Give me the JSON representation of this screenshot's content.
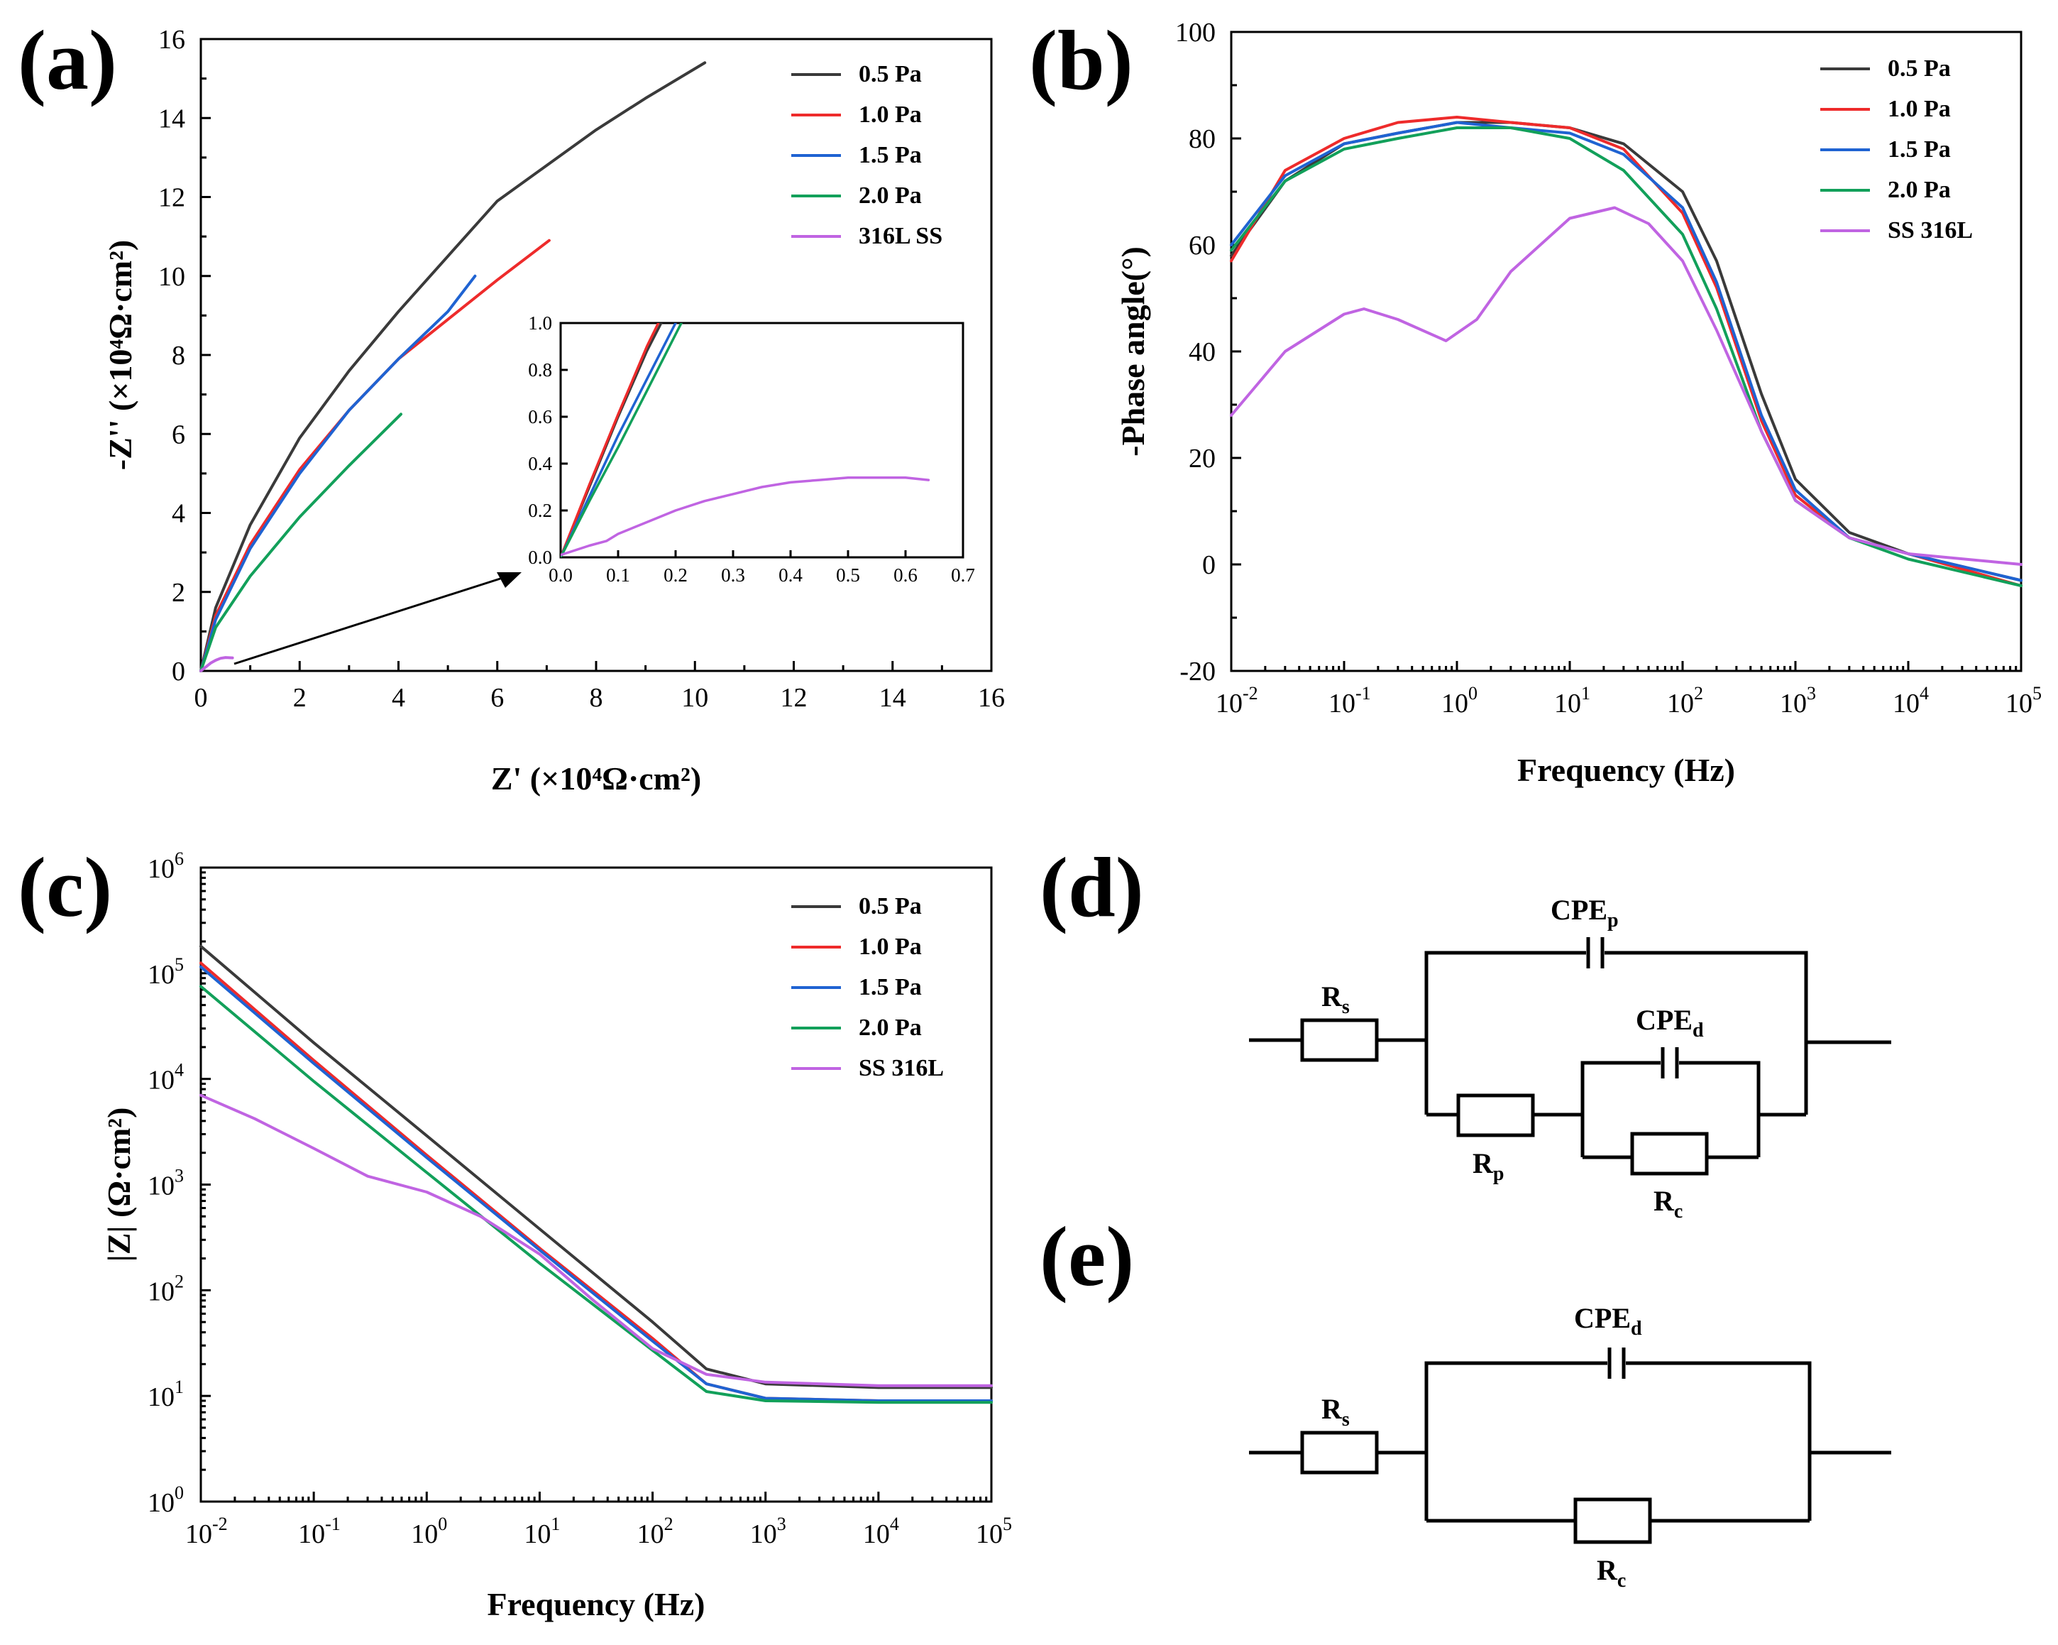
{
  "panels": {
    "a": "(a)",
    "b": "(b)",
    "c": "(c)",
    "d": "(d)",
    "e": "(e)"
  },
  "series_colors": [
    "#3a3a3a",
    "#ee2b2b",
    "#1f63d2",
    "#12a05a",
    "#c064e2"
  ],
  "chart_data": [
    {
      "panel": "a",
      "type": "line",
      "xlabel": "Z' (×10⁴Ω·cm²)",
      "ylabel": "-Z'' (×10⁴Ω·cm²)",
      "xlim": [
        0,
        16
      ],
      "ylim": [
        0,
        16
      ],
      "xticks": [
        "0",
        "2",
        "4",
        "6",
        "8",
        "10",
        "12",
        "14",
        "16"
      ],
      "yticks": [
        "0",
        "2",
        "4",
        "6",
        "8",
        "10",
        "12",
        "14",
        "16"
      ],
      "legend": [
        "0.5 Pa",
        "1.0 Pa",
        "1.5 Pa",
        "2.0 Pa",
        "316L SS"
      ],
      "series": [
        {
          "name": "0.5 Pa",
          "x": [
            0,
            0.3,
            1,
            2,
            3,
            4,
            5,
            6,
            7,
            8,
            9,
            10.2
          ],
          "y": [
            0,
            1.6,
            3.7,
            5.9,
            7.6,
            9.1,
            10.5,
            11.9,
            12.8,
            13.7,
            14.5,
            15.4
          ]
        },
        {
          "name": "1.0 Pa",
          "x": [
            0,
            0.3,
            1,
            2,
            3,
            4,
            5,
            6,
            7.05
          ],
          "y": [
            0,
            1.4,
            3.2,
            5.1,
            6.6,
            7.9,
            8.9,
            9.9,
            10.9
          ]
        },
        {
          "name": "1.5 Pa",
          "x": [
            0,
            0.3,
            1,
            2,
            3,
            4,
            5,
            5.55
          ],
          "y": [
            0,
            1.3,
            3.1,
            5.0,
            6.6,
            7.9,
            9.1,
            10.0
          ]
        },
        {
          "name": "2.0 Pa",
          "x": [
            0,
            0.3,
            1,
            2,
            3,
            4.05
          ],
          "y": [
            0,
            1.1,
            2.4,
            3.9,
            5.2,
            6.5
          ]
        },
        {
          "name": "316L SS",
          "x": [
            0,
            0.1,
            0.2,
            0.3,
            0.4,
            0.5,
            0.64
          ],
          "y": [
            0,
            0.1,
            0.2,
            0.27,
            0.32,
            0.34,
            0.33
          ]
        }
      ],
      "inset": {
        "xlim": [
          0,
          0.7
        ],
        "ylim": [
          0,
          1.0
        ],
        "xticks": [
          "0.0",
          "0.1",
          "0.2",
          "0.3",
          "0.4",
          "0.5",
          "0.6",
          "0.7"
        ],
        "yticks": [
          "0.0",
          "0.2",
          "0.4",
          "0.6",
          "0.8",
          "1.0"
        ],
        "series": [
          {
            "name": "0.5 Pa",
            "x": [
              0,
              0.05,
              0.1,
              0.15,
              0.175
            ],
            "y": [
              0,
              0.3,
              0.6,
              0.88,
              1.0
            ]
          },
          {
            "name": "1.0 Pa",
            "x": [
              0,
              0.05,
              0.1,
              0.15,
              0.17
            ],
            "y": [
              0,
              0.31,
              0.61,
              0.9,
              1.0
            ]
          },
          {
            "name": "1.5 Pa",
            "x": [
              0,
              0.05,
              0.1,
              0.15,
              0.2
            ],
            "y": [
              0,
              0.26,
              0.52,
              0.76,
              1.0
            ]
          },
          {
            "name": "2.0 Pa",
            "x": [
              0,
              0.05,
              0.1,
              0.15,
              0.21
            ],
            "y": [
              0,
              0.24,
              0.47,
              0.71,
              1.0
            ]
          },
          {
            "name": "316L SS",
            "x": [
              0,
              0.05,
              0.08,
              0.1,
              0.15,
              0.2,
              0.25,
              0.3,
              0.35,
              0.4,
              0.45,
              0.5,
              0.55,
              0.6,
              0.64
            ],
            "y": [
              0.01,
              0.05,
              0.07,
              0.1,
              0.15,
              0.2,
              0.24,
              0.27,
              0.3,
              0.32,
              0.33,
              0.34,
              0.34,
              0.34,
              0.33
            ]
          }
        ]
      }
    },
    {
      "panel": "b",
      "type": "line",
      "xlabel": "Frequency (Hz)",
      "ylabel": "-Phase angle(°)",
      "xscale": "log",
      "xlim": [
        0.01,
        100000
      ],
      "ylim": [
        -20,
        100
      ],
      "xticks_exp": [
        "-2",
        "-1",
        "0",
        "1",
        "2",
        "3",
        "4",
        "5"
      ],
      "yticks": [
        "-20",
        "0",
        "20",
        "40",
        "60",
        "80",
        "100"
      ],
      "legend": [
        "0.5 Pa",
        "1.0 Pa",
        "1.5 Pa",
        "2.0 Pa",
        "SS 316L"
      ],
      "series": [
        {
          "name": "0.5 Pa",
          "x": [
            0.01,
            0.03,
            0.1,
            0.3,
            1,
            3,
            10,
            30,
            100,
            200,
            500,
            1000,
            3000,
            10000,
            100000
          ],
          "y": [
            58,
            72,
            79,
            81,
            83,
            83,
            82,
            79,
            70,
            57,
            32,
            16,
            6,
            2,
            -3
          ]
        },
        {
          "name": "1.0 Pa",
          "x": [
            0.01,
            0.03,
            0.1,
            0.3,
            1,
            3,
            10,
            30,
            100,
            200,
            500,
            1000,
            3000,
            10000,
            100000
          ],
          "y": [
            57,
            74,
            80,
            83,
            84,
            83,
            82,
            78,
            66,
            52,
            27,
            13,
            5,
            2,
            -4
          ]
        },
        {
          "name": "1.5 Pa",
          "x": [
            0.01,
            0.03,
            0.1,
            0.3,
            1,
            3,
            10,
            30,
            100,
            200,
            500,
            1000,
            3000,
            10000,
            100000
          ],
          "y": [
            60,
            73,
            79,
            81,
            83,
            82,
            81,
            77,
            67,
            53,
            28,
            14,
            5,
            2,
            -3
          ]
        },
        {
          "name": "2.0 Pa",
          "x": [
            0.01,
            0.03,
            0.1,
            0.3,
            1,
            3,
            10,
            30,
            100,
            200,
            500,
            1000,
            3000,
            10000,
            100000
          ],
          "y": [
            59,
            72,
            78,
            80,
            82,
            82,
            80,
            74,
            62,
            48,
            25,
            12,
            5,
            1,
            -4
          ]
        },
        {
          "name": "SS 316L",
          "x": [
            0.01,
            0.03,
            0.1,
            0.15,
            0.3,
            0.8,
            1.5,
            3,
            10,
            25,
            50,
            100,
            200,
            500,
            1000,
            3000,
            10000,
            100000
          ],
          "y": [
            28,
            40,
            47,
            48,
            46,
            42,
            46,
            55,
            65,
            67,
            64,
            57,
            44,
            25,
            12,
            5,
            2,
            0
          ]
        }
      ]
    },
    {
      "panel": "c",
      "type": "line",
      "xlabel": "Frequency (Hz)",
      "ylabel": "|Z| (Ω·cm²)",
      "xscale": "log",
      "yscale": "log",
      "xlim": [
        0.01,
        100000
      ],
      "ylim": [
        1,
        1000000
      ],
      "xticks_exp": [
        "-2",
        "-1",
        "0",
        "1",
        "2",
        "3",
        "4",
        "5"
      ],
      "yticks_exp": [
        "0",
        "1",
        "2",
        "3",
        "4",
        "5",
        "6"
      ],
      "legend": [
        "0.5 Pa",
        "1.0 Pa",
        "1.5 Pa",
        "2.0 Pa",
        "SS 316L"
      ],
      "series": [
        {
          "name": "0.5 Pa",
          "x": [
            0.01,
            0.1,
            1,
            10,
            100,
            300,
            1000,
            10000,
            100000
          ],
          "y": [
            180000,
            22000,
            2900,
            380,
            50,
            18,
            13,
            12,
            12
          ]
        },
        {
          "name": "1.0 Pa",
          "x": [
            0.01,
            0.1,
            1,
            10,
            100,
            300,
            1000,
            10000,
            100000
          ],
          "y": [
            125000,
            15000,
            1900,
            250,
            35,
            13,
            9.5,
            9,
            9
          ]
        },
        {
          "name": "1.5 Pa",
          "x": [
            0.01,
            0.1,
            1,
            10,
            100,
            300,
            1000,
            10000,
            100000
          ],
          "y": [
            115000,
            14000,
            1800,
            240,
            33,
            13,
            9.5,
            9,
            9
          ]
        },
        {
          "name": "2.0 Pa",
          "x": [
            0.01,
            0.1,
            1,
            10,
            100,
            300,
            1000,
            10000,
            100000
          ],
          "y": [
            75000,
            9500,
            1300,
            180,
            27,
            11,
            9,
            8.7,
            8.7
          ]
        },
        {
          "name": "SS 316L",
          "x": [
            0.01,
            0.03,
            0.1,
            0.3,
            1,
            3,
            10,
            30,
            100,
            300,
            1000,
            10000,
            100000
          ],
          "y": [
            7000,
            4200,
            2200,
            1200,
            850,
            500,
            220,
            80,
            28,
            16,
            13.5,
            12.5,
            12.5
          ]
        }
      ]
    }
  ],
  "circuits": {
    "d": {
      "Rs": [
        "R",
        "s"
      ],
      "CPEp": [
        "CPE",
        "p"
      ],
      "CPEd": [
        "CPE",
        "d"
      ],
      "Rp": [
        "R",
        "p"
      ],
      "Rc": [
        "R",
        "c"
      ]
    },
    "e": {
      "Rs": [
        "R",
        "s"
      ],
      "CPEd": [
        "CPE",
        "d"
      ],
      "Rc": [
        "R",
        "c"
      ]
    }
  }
}
